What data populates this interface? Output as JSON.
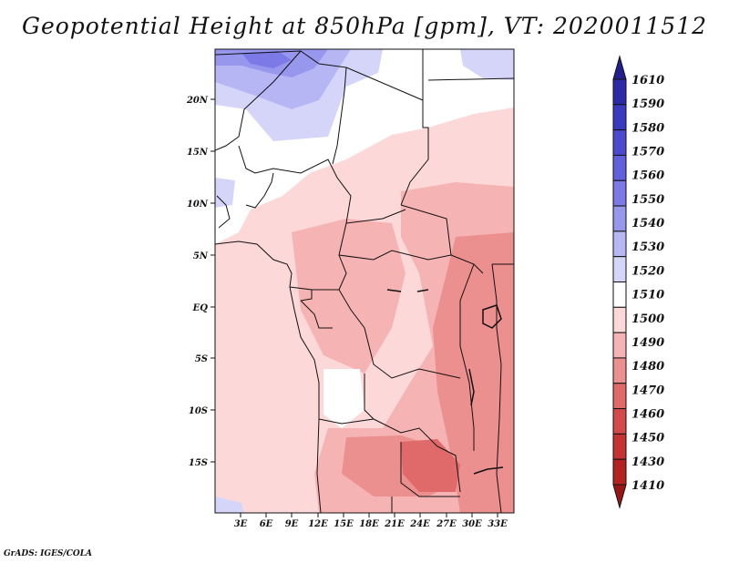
{
  "title": "Geopotential Height at 850hPa [gpm], VT: 2020011512",
  "footer": "GrADS: IGES/COLA",
  "lat_labels": [
    "20N",
    "15N",
    "10N",
    "5N",
    "EQ",
    "5S",
    "10S",
    "15S"
  ],
  "lon_labels": [
    "3E",
    "6E",
    "9E",
    "12E",
    "15E",
    "18E",
    "21E",
    "24E",
    "27E",
    "30E",
    "33E"
  ],
  "colorbar": {
    "levels": [
      "1610",
      "1590",
      "1580",
      "1570",
      "1560",
      "1550",
      "1540",
      "1530",
      "1520",
      "1510",
      "1500",
      "1490",
      "1480",
      "1470",
      "1460",
      "1450",
      "1430",
      "1410"
    ],
    "colors": [
      "#22208f",
      "#2b2aa8",
      "#3a3ac0",
      "#4c4bd0",
      "#6160dd",
      "#7b7ae6",
      "#9897ee",
      "#b6b6f5",
      "#d5d5fa",
      "#ffffff",
      "#fcd8d8",
      "#f5b3b3",
      "#ec8f8f",
      "#e06a6a",
      "#d44a4a",
      "#c73333",
      "#b52222",
      "#9a1515"
    ]
  }
}
